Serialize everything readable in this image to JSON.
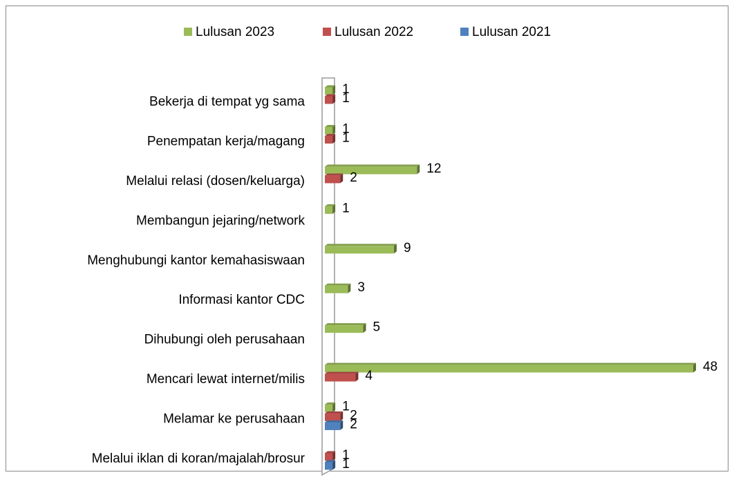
{
  "chart_data": {
    "type": "bar",
    "orientation": "horizontal",
    "categories": [
      "Bekerja di tempat yg sama",
      "Penempatan kerja/magang",
      "Melalui relasi (dosen/keluarga)",
      "Membangun jejaring/network",
      "Menghubungi kantor kemahasiswaan",
      "Informasi kantor CDC",
      "Dihubungi oleh perusahaan",
      "Mencari lewat internet/milis",
      "Melamar ke perusahaan",
      "Melalui iklan di koran/majalah/brosur"
    ],
    "series": [
      {
        "name": "Lulusan 2023",
        "color": "#9bbb59",
        "values": [
          1,
          1,
          12,
          1,
          9,
          3,
          5,
          48,
          1,
          null
        ]
      },
      {
        "name": "Lulusan 2022",
        "color": "#c0504d",
        "values": [
          1,
          1,
          2,
          null,
          null,
          null,
          null,
          4,
          2,
          1
        ]
      },
      {
        "name": "Lulusan 2021",
        "color": "#4f81bd",
        "values": [
          null,
          null,
          null,
          null,
          null,
          null,
          null,
          null,
          2,
          1
        ]
      }
    ],
    "legend": "top"
  }
}
